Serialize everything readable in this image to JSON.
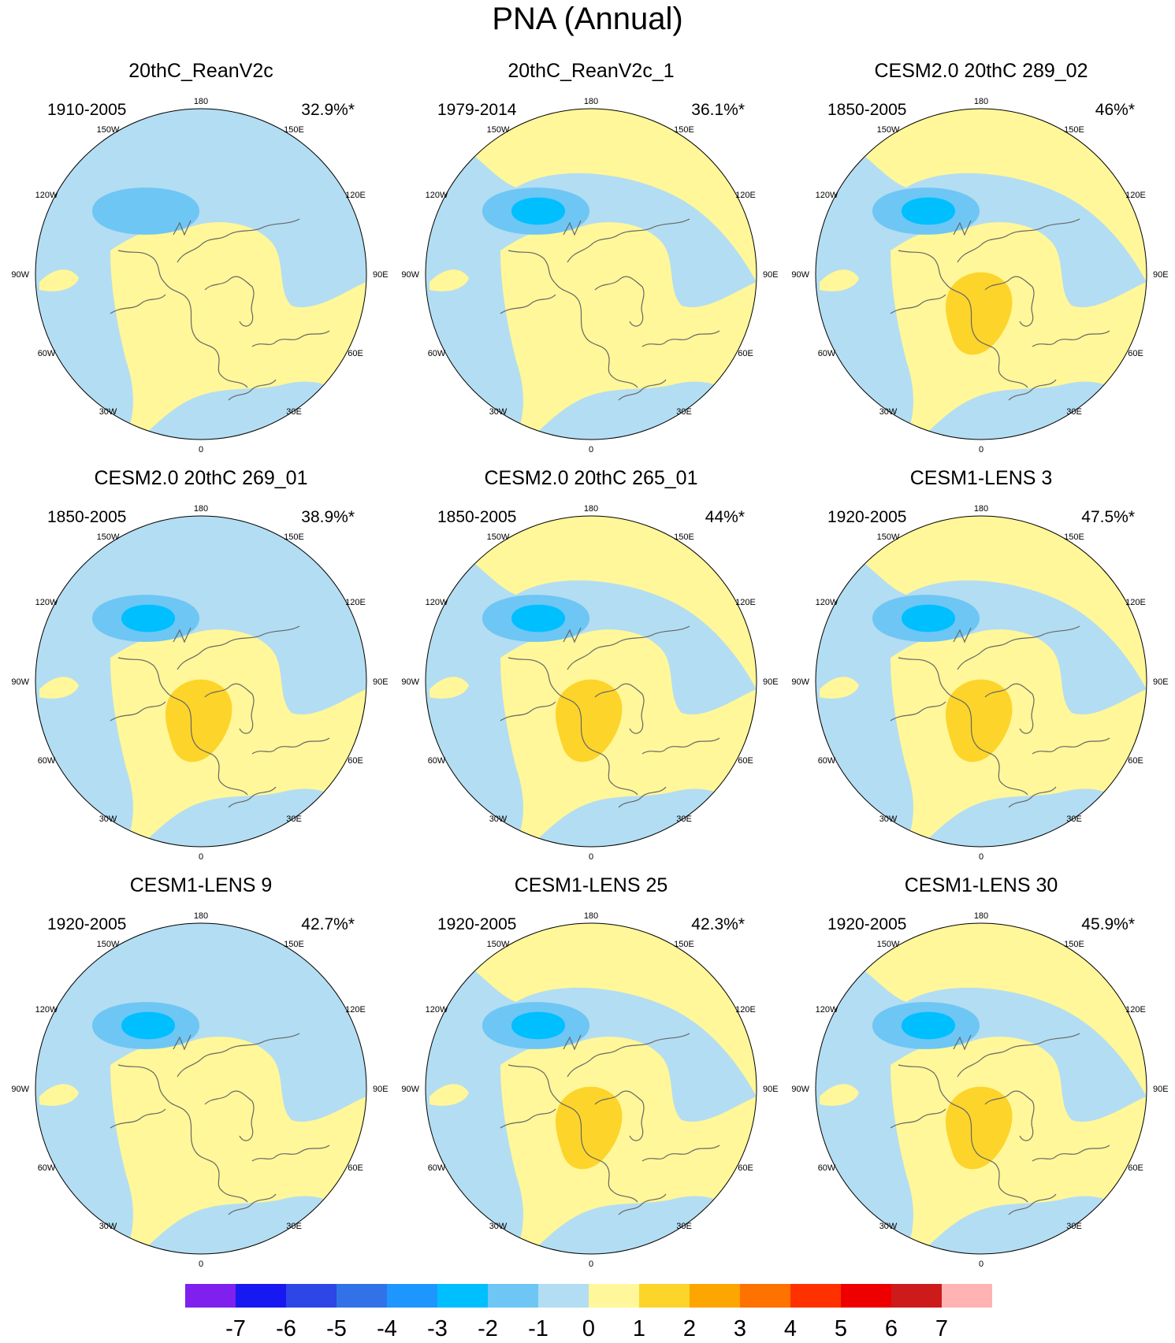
{
  "title": "PNA (Annual)",
  "lon_labels": {
    "top": "180",
    "bottom": "0",
    "w150": "150W",
    "e150": "150E",
    "w120": "120W",
    "e120": "120E",
    "w90": "90W",
    "e90": "90E",
    "w60": "60W",
    "e60": "60E",
    "w30": "30W",
    "e30": "30E"
  },
  "panels": [
    {
      "name": "20thC_ReanV2c",
      "years": "1910-2005",
      "pct": "32.9%*",
      "low_min": -2,
      "high_max": 1
    },
    {
      "name": "20thC_ReanV2c_1",
      "years": "1979-2014",
      "pct": "36.1%*",
      "low_min": -3,
      "high_max": 1
    },
    {
      "name": "CESM2.0 20thC 289_02",
      "years": "1850-2005",
      "pct": "46%*",
      "low_min": -3,
      "high_max": 2
    },
    {
      "name": "CESM2.0 20thC 269_01",
      "years": "1850-2005",
      "pct": "38.9%*",
      "low_min": -3,
      "high_max": 2
    },
    {
      "name": "CESM2.0 20thC 265_01",
      "years": "1850-2005",
      "pct": "44%*",
      "low_min": -3,
      "high_max": 2
    },
    {
      "name": "CESM1-LENS 3",
      "years": "1920-2005",
      "pct": "47.5%*",
      "low_min": -3,
      "high_max": 2
    },
    {
      "name": "CESM1-LENS 9",
      "years": "1920-2005",
      "pct": "42.7%*",
      "low_min": -3,
      "high_max": 1
    },
    {
      "name": "CESM1-LENS 25",
      "years": "1920-2005",
      "pct": "42.3%*",
      "low_min": -3,
      "high_max": 2
    },
    {
      "name": "CESM1-LENS 30",
      "years": "1920-2005",
      "pct": "45.9%*",
      "low_min": -3,
      "high_max": 2
    }
  ],
  "colorbar": {
    "labels": [
      "-7",
      "-6",
      "-5",
      "-4",
      "-3",
      "-2",
      "-1",
      "0",
      "1",
      "2",
      "3",
      "4",
      "5",
      "6",
      "7"
    ],
    "colors": [
      "#7f20ee",
      "#1818f2",
      "#2d46e6",
      "#3272e8",
      "#1e96ff",
      "#00bfff",
      "#6ec6f4",
      "#b3ddf2",
      "#fff799",
      "#fdd42a",
      "#fda500",
      "#fe7200",
      "#ff3100",
      "#ee0000",
      "#cd1a1a",
      "#ffb3b3"
    ]
  },
  "colors": {
    "neg1": "#b3ddf2",
    "neg2": "#6ec6f4",
    "neg3": "#00bfff",
    "pos1": "#fff799",
    "pos2": "#fdd42a",
    "coast": "#666666"
  }
}
